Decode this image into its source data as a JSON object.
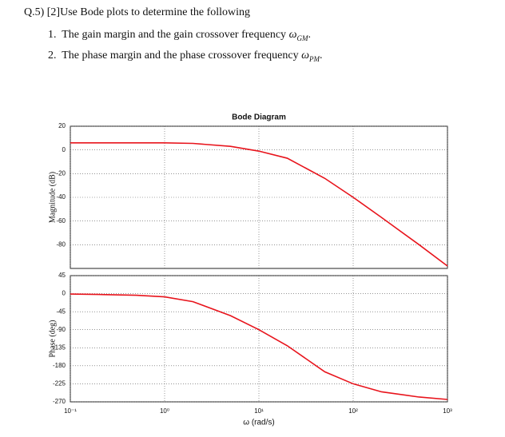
{
  "question": {
    "header": "Q.5) [2]Use Bode plots to determine the following",
    "items": [
      {
        "number": "1.",
        "text": "The gain margin and the gain crossover frequency",
        "symbol": "ω",
        "subscript": "GM",
        "end": "."
      },
      {
        "number": "2.",
        "text": "The phase margin and the phase crossover frequency",
        "symbol": "ω",
        "subscript": "PM",
        "end": "."
      }
    ]
  },
  "chart_data": [
    {
      "type": "line",
      "title": "Bode Diagram",
      "ylabel": "Magnitude (dB)",
      "log_x": true,
      "grid": true,
      "x": [
        0.1,
        0.2,
        0.5,
        1,
        2,
        5,
        10,
        20,
        50,
        100,
        200,
        500,
        1000
      ],
      "series": [
        {
          "name": "Magnitude",
          "color": "#e8141c",
          "values": [
            6,
            6,
            6,
            6,
            5.5,
            3,
            -1,
            -7,
            -24,
            -40,
            -57,
            -80,
            -98
          ]
        }
      ],
      "xlim": [
        0.1,
        1000
      ],
      "ylim": [
        -100,
        20
      ],
      "yticks": [
        20,
        0,
        -20,
        -40,
        -60,
        -80
      ]
    },
    {
      "type": "line",
      "ylabel": "Phase (deg)",
      "xlabel": "ω (rad/s)",
      "log_x": true,
      "grid": true,
      "x": [
        0.1,
        0.2,
        0.5,
        1,
        2,
        5,
        10,
        20,
        50,
        100,
        200,
        500,
        1000
      ],
      "series": [
        {
          "name": "Phase",
          "color": "#e8141c",
          "values": [
            -1,
            -2,
            -4,
            -8,
            -20,
            -55,
            -90,
            -130,
            -195,
            -225,
            -245,
            -258,
            -264
          ]
        }
      ],
      "xlim": [
        0.1,
        1000
      ],
      "xticks": [
        {
          "value": 0.1,
          "label": "10⁻¹"
        },
        {
          "value": 1,
          "label": "10⁰"
        },
        {
          "value": 10,
          "label": "10¹"
        },
        {
          "value": 100,
          "label": "10²"
        },
        {
          "value": 1000,
          "label": "10³"
        }
      ],
      "ylim": [
        -270,
        45
      ],
      "yticks": [
        45,
        0,
        -45,
        -90,
        -135,
        -180,
        -225,
        -270
      ]
    }
  ]
}
